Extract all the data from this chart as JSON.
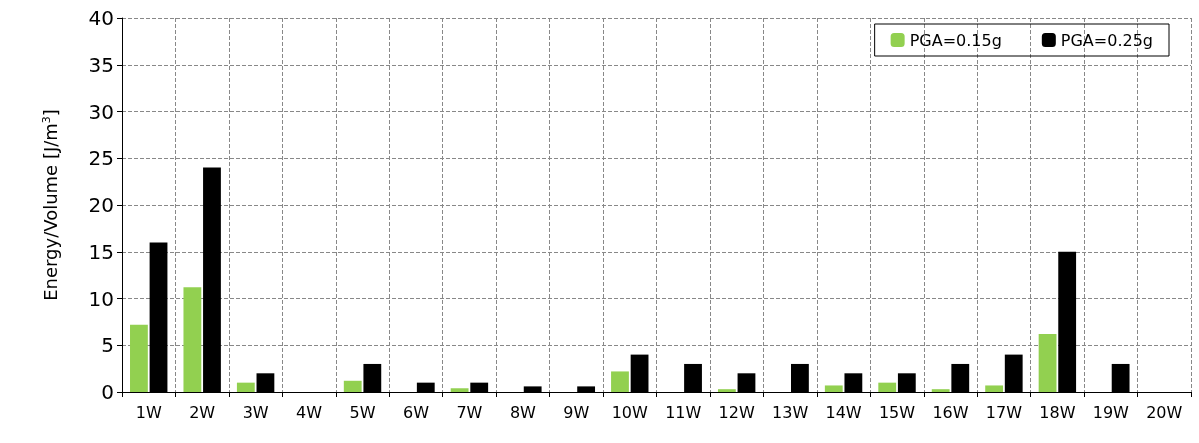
{
  "chart_data": {
    "type": "bar",
    "ylabel": "Energy/Volume [J/m$^{3}$]",
    "categories": [
      "1W",
      "2W",
      "3W",
      "4W",
      "5W",
      "6W",
      "7W",
      "8W",
      "9W",
      "10W",
      "11W",
      "12W",
      "13W",
      "14W",
      "15W",
      "16W",
      "17W",
      "18W",
      "19W",
      "20W"
    ],
    "series": [
      {
        "name": "PGA=0.15g",
        "color": "#92d050",
        "values": [
          7.2,
          11.2,
          1,
          0,
          1.2,
          0,
          0.4,
          0,
          0,
          2.2,
          0,
          0.3,
          0,
          0.7,
          1,
          0.3,
          0.7,
          6.2,
          0,
          0
        ]
      },
      {
        "name": "PGA=0.25g",
        "color": "#000000",
        "values": [
          16,
          24,
          2,
          0,
          3,
          1,
          1,
          0.6,
          0.6,
          4,
          3,
          2,
          3,
          2,
          2,
          3,
          4,
          15,
          3,
          0
        ]
      }
    ],
    "ylim": [
      0,
      40
    ],
    "yticks": [
      0,
      5,
      10,
      15,
      20,
      25,
      30,
      35,
      40
    ],
    "grid": true,
    "legend": "top right"
  }
}
